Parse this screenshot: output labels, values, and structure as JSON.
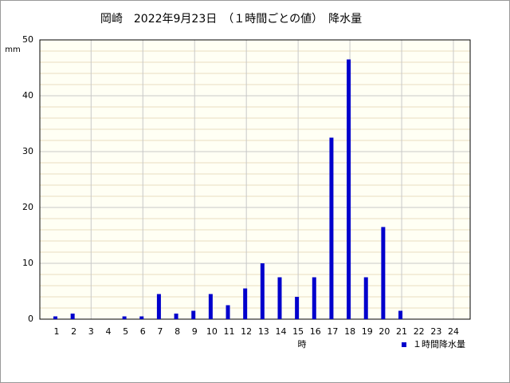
{
  "chart_data": {
    "type": "bar",
    "title": "岡崎　2022年9月23日　（１時間ごとの値）　降水量",
    "y_label": "mm",
    "x_label": "時",
    "categories": [
      "1",
      "2",
      "3",
      "4",
      "5",
      "6",
      "7",
      "8",
      "9",
      "10",
      "11",
      "12",
      "13",
      "14",
      "15",
      "16",
      "17",
      "18",
      "19",
      "20",
      "21",
      "22",
      "23",
      "24"
    ],
    "series": [
      {
        "name": "１時間降水量",
        "color": "#0000cc",
        "values": [
          0.5,
          1.0,
          0,
          0,
          0.5,
          0.5,
          4.5,
          1.0,
          1.5,
          4.5,
          2.5,
          5.5,
          10.0,
          7.5,
          4.0,
          7.5,
          32.5,
          46.5,
          7.5,
          16.5,
          1.5,
          0,
          0,
          0
        ]
      }
    ],
    "ylim": [
      0,
      50
    ],
    "yticks": [
      0,
      10,
      20,
      30,
      40,
      50
    ],
    "grid": true,
    "legend": "bottom-right"
  }
}
